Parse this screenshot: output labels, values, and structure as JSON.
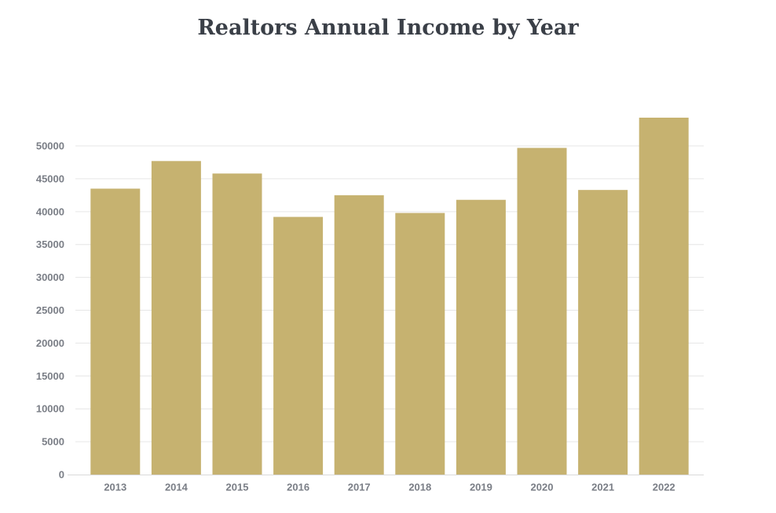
{
  "chart_data": {
    "type": "bar",
    "title": "Realtors Annual Income by Year",
    "categories": [
      "2013",
      "2014",
      "2015",
      "2016",
      "2017",
      "2018",
      "2019",
      "2020",
      "2021",
      "2022"
    ],
    "values": [
      43500,
      47700,
      45800,
      39200,
      42500,
      39800,
      41800,
      49700,
      43300,
      54300
    ],
    "ylim": [
      0,
      54300
    ],
    "yticks": [
      0,
      5000,
      10000,
      15000,
      20000,
      25000,
      30000,
      35000,
      40000,
      45000,
      50000
    ],
    "grid": true,
    "legend": "none",
    "colors": {
      "bar": "#c6b270",
      "grid": "#e6e6e6",
      "axis": "#d9d9d9",
      "text": "#7a7e86",
      "title": "#3a3f47"
    }
  }
}
